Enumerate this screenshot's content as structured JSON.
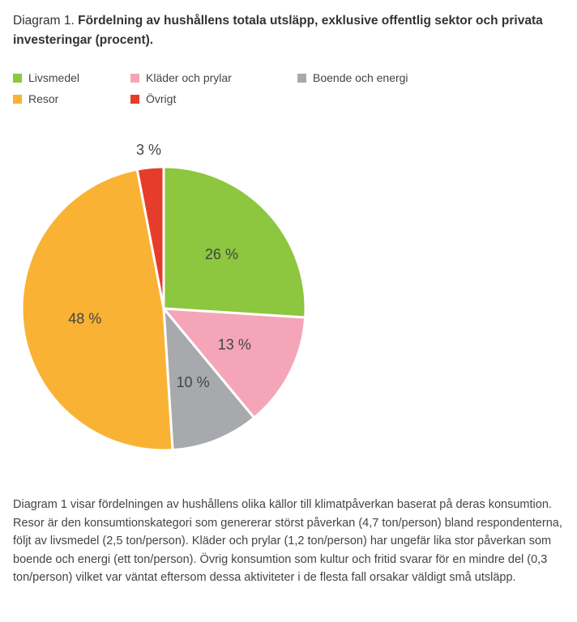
{
  "title": {
    "prefix": "Diagram 1. ",
    "main": "Fördelning av hushållens totala utsläpp, exklusive offentlig sektor och privata investeringar (procent)."
  },
  "chart_data": {
    "type": "pie",
    "categories": [
      "Livsmedel",
      "Kläder och prylar",
      "Boende och energi",
      "Resor",
      "Övrigt"
    ],
    "values": [
      26,
      13,
      10,
      48,
      3
    ],
    "data_labels": [
      "26 %",
      "13 %",
      "10 %",
      "48 %",
      "3 %"
    ],
    "colors": [
      "#8dc63f",
      "#f4a6b8",
      "#a7a9ac",
      "#f9b233",
      "#e63c2b"
    ],
    "legend_position": "top-left",
    "start": "12 o'clock, clockwise"
  },
  "legend": [
    {
      "label": "Livsmedel",
      "color": "#8dc63f"
    },
    {
      "label": "Kläder och prylar",
      "color": "#f4a6b8"
    },
    {
      "label": "Boende och energi",
      "color": "#a7a9ac"
    },
    {
      "label": "Resor",
      "color": "#f9b233"
    },
    {
      "label": "Övrigt",
      "color": "#e63c2b"
    }
  ],
  "body_text": "Diagram 1 visar fördelningen av hushållens olika källor till klimatpåverkan baserat på deras konsumtion. Resor är den konsumtionskategori som genererar störst påverkan (4,7 ton/person) bland respondenterna, följt av livsmedel (2,5 ton/person). Kläder och prylar (1,2 ton/person) har ungefär lika stor påverkan som boende och energi (ett ton/person). Övrig konsumtion som kultur och fritid svarar för en mindre del (0,3 ton/person) vilket var väntat eftersom dessa aktiviteter i de flesta fall orsakar väldigt små utsläpp."
}
